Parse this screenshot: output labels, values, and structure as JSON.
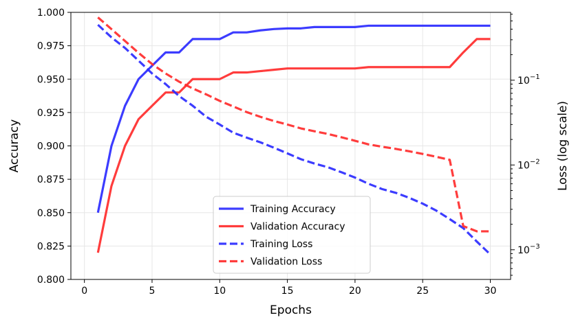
{
  "chart_data": {
    "type": "line",
    "xlabel": "Epochs",
    "ylabel_left": "Accuracy",
    "ylabel_right": "Loss (log scale)",
    "xlim": [
      -1,
      31.5
    ],
    "ylim_left": [
      0.8,
      1.0
    ],
    "ylim_right_log10": [
      -3.35,
      -0.2
    ],
    "x_ticks": [
      0,
      5,
      10,
      15,
      20,
      25,
      30
    ],
    "y_left_ticks": [
      "0.800",
      "0.825",
      "0.850",
      "0.875",
      "0.900",
      "0.925",
      "0.950",
      "0.975",
      "1.000"
    ],
    "y_right_ticks": [
      {
        "value": 0.1,
        "base": "10",
        "exp": "−1"
      },
      {
        "value": 0.01,
        "base": "10",
        "exp": "−2"
      },
      {
        "value": 0.001,
        "base": "10",
        "exp": "−3"
      }
    ],
    "grid": true,
    "legend_position": "lower-center",
    "x": [
      1,
      2,
      3,
      4,
      5,
      6,
      7,
      8,
      9,
      10,
      11,
      12,
      13,
      14,
      15,
      16,
      17,
      18,
      19,
      20,
      21,
      22,
      23,
      24,
      25,
      26,
      27,
      28,
      29,
      30
    ],
    "series": [
      {
        "name": "Training Accuracy",
        "axis": "left",
        "color": "#2b2bff",
        "dash": "solid",
        "values": [
          0.85,
          0.9,
          0.93,
          0.95,
          0.96,
          0.97,
          0.97,
          0.98,
          0.98,
          0.98,
          0.985,
          0.985,
          0.9865,
          0.9875,
          0.988,
          0.988,
          0.989,
          0.989,
          0.989,
          0.989,
          0.99,
          0.99,
          0.99,
          0.99,
          0.99,
          0.99,
          0.99,
          0.99,
          0.99,
          0.99
        ]
      },
      {
        "name": "Validation Accuracy",
        "axis": "left",
        "color": "#ff2b2b",
        "dash": "solid",
        "values": [
          0.82,
          0.87,
          0.9,
          0.92,
          0.93,
          0.94,
          0.94,
          0.95,
          0.95,
          0.95,
          0.955,
          0.955,
          0.956,
          0.957,
          0.958,
          0.958,
          0.958,
          0.958,
          0.958,
          0.958,
          0.959,
          0.959,
          0.959,
          0.959,
          0.959,
          0.959,
          0.959,
          0.97,
          0.98,
          0.98
        ]
      },
      {
        "name": "Training Loss",
        "axis": "right",
        "color": "#2b2bff",
        "dash": "dashed",
        "values": [
          0.45,
          0.32,
          0.24,
          0.17,
          0.12,
          0.09,
          0.065,
          0.05,
          0.037,
          0.03,
          0.024,
          0.021,
          0.0185,
          0.016,
          0.0137,
          0.0117,
          0.0104,
          0.0094,
          0.0082,
          0.0071,
          0.006,
          0.0052,
          0.0047,
          0.0041,
          0.0035,
          0.0029,
          0.0023,
          0.0018,
          0.00125,
          0.00088
        ]
      },
      {
        "name": "Validation Loss",
        "axis": "right",
        "color": "#ff2b2b",
        "dash": "dashed",
        "values": [
          0.55,
          0.4,
          0.29,
          0.21,
          0.155,
          0.12,
          0.096,
          0.08,
          0.068,
          0.057,
          0.049,
          0.042,
          0.037,
          0.033,
          0.03,
          0.027,
          0.025,
          0.0232,
          0.0212,
          0.0193,
          0.0175,
          0.0164,
          0.0155,
          0.0145,
          0.0135,
          0.0125,
          0.0115,
          0.0019,
          0.00165,
          0.00165
        ]
      }
    ]
  }
}
